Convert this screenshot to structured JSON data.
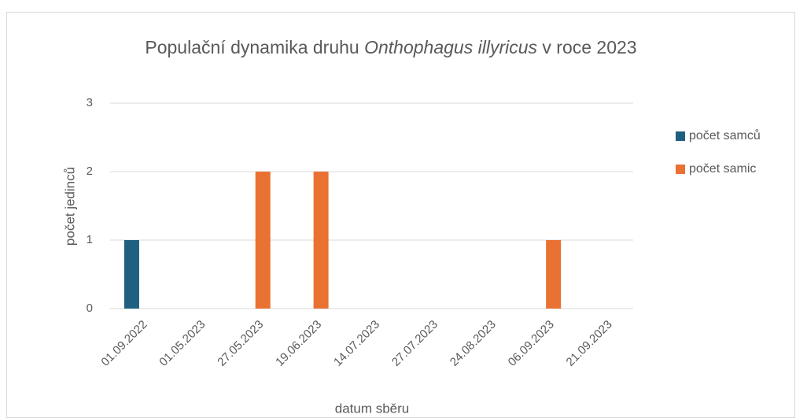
{
  "chart_data": {
    "type": "bar",
    "title": [
      "Populační dynamika druhu ",
      "Onthophagus illyricus",
      " v roce 2023"
    ],
    "x_label": "datum sběru",
    "y_label": "počet jedinců",
    "categories": [
      "01.09.2022",
      "01.05.2023",
      "27.05.2023",
      "19.06.2023",
      "14.07.2023",
      "27.07.2023",
      "24.08.2023",
      "06.09.2023",
      "21.09.2023"
    ],
    "series": [
      {
        "name": "počet samců",
        "color": "#1f5f80",
        "values": [
          1,
          0,
          0,
          0,
          0,
          0,
          0,
          0,
          0
        ]
      },
      {
        "name": "počet samic",
        "color": "#e97132",
        "values": [
          0,
          0,
          2,
          2,
          0,
          0,
          0,
          1,
          0
        ]
      }
    ],
    "ylim": [
      0,
      3
    ],
    "yticks": [
      0,
      1,
      2,
      3
    ],
    "grid": true,
    "legend": "right"
  }
}
